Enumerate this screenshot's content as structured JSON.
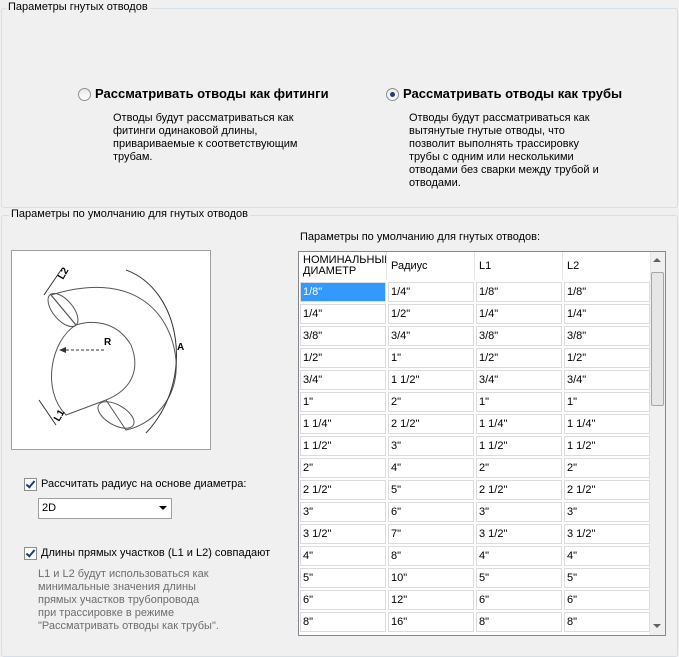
{
  "group_main": {
    "title": "Параметры гнутых отводов",
    "options": [
      {
        "label": "Рассматривать отводы как фитинги",
        "selected": false,
        "description": "Отводы будут рассматриваться как фитинги одинаковой длины, привариваемые к соответствующим трубам."
      },
      {
        "label": "Рассматривать отводы как трубы",
        "selected": true,
        "description": "Отводы будут рассматриваться как вытянутые гнутые отводы, что позволит выполнять трассировку трубы с одним или несколькими отводами без сварки между трубой и отводами."
      }
    ]
  },
  "group_defaults": {
    "title": "Параметры по умолчанию для гнутых отводов",
    "diagram": {
      "labels": [
        "L2",
        "R",
        "A",
        "L1"
      ]
    },
    "radius_checkbox": {
      "label": "Рассчитать радиус на основе диаметра:",
      "checked": true
    },
    "radius_dropdown": {
      "value": "2D"
    },
    "lengths_checkbox": {
      "label": "Длины прямых участков (L1 и L2) совпадают",
      "checked": true
    },
    "note": "L1 и L2 будут использоваться как минимальные значения длины прямых участков трубопровода при трассировке в режиме \"Рассматривать отводы как трубы\".",
    "table": {
      "title": "Параметры по умолчанию для гнутых отводов:",
      "headers": [
        "НОМИНАЛЬНЫЙ ДИАМЕТР",
        "Радиус",
        "L1",
        "L2"
      ],
      "rows": [
        [
          "1/8\"",
          "1/4\"",
          "1/8\"",
          "1/8\""
        ],
        [
          "1/4\"",
          "1/2\"",
          "1/4\"",
          "1/4\""
        ],
        [
          "3/8\"",
          "3/4\"",
          "3/8\"",
          "3/8\""
        ],
        [
          "1/2\"",
          "1\"",
          "1/2\"",
          "1/2\""
        ],
        [
          "3/4\"",
          "1 1/2\"",
          "3/4\"",
          "3/4\""
        ],
        [
          "1\"",
          "2\"",
          "1\"",
          "1\""
        ],
        [
          "1 1/4\"",
          "2 1/2\"",
          "1 1/4\"",
          "1 1/4\""
        ],
        [
          "1 1/2\"",
          "3\"",
          "1 1/2\"",
          "1 1/2\""
        ],
        [
          "2\"",
          "4\"",
          "2\"",
          "2\""
        ],
        [
          "2 1/2\"",
          "5\"",
          "2 1/2\"",
          "2 1/2\""
        ],
        [
          "3\"",
          "6\"",
          "3\"",
          "3\""
        ],
        [
          "3 1/2\"",
          "7\"",
          "3 1/2\"",
          "3 1/2\""
        ],
        [
          "4\"",
          "8\"",
          "4\"",
          "4\""
        ],
        [
          "5\"",
          "10\"",
          "5\"",
          "5\""
        ],
        [
          "6\"",
          "12\"",
          "6\"",
          "6\""
        ],
        [
          "8\"",
          "16\"",
          "8\"",
          "8\""
        ]
      ]
    }
  }
}
